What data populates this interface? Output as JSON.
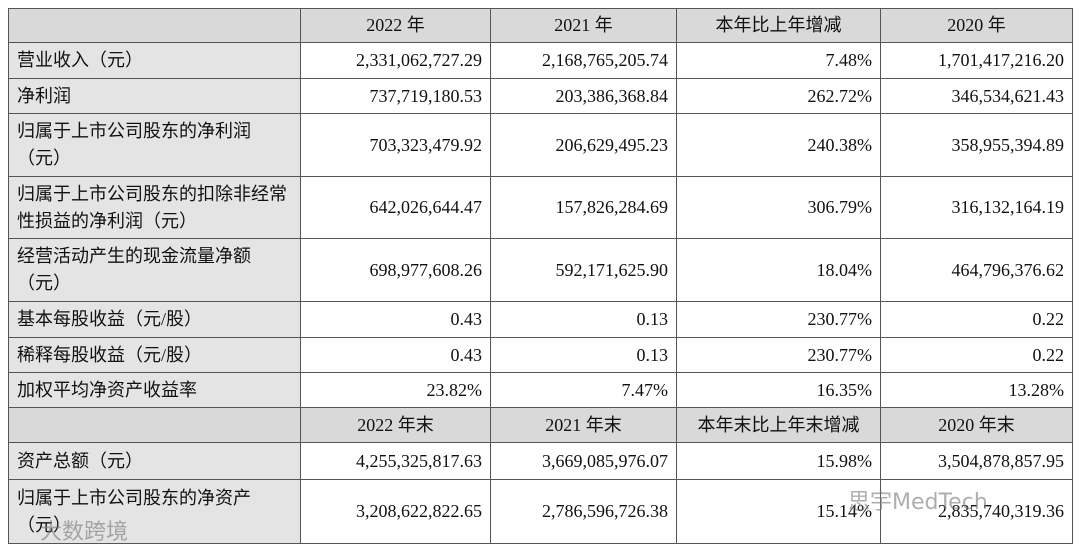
{
  "table": {
    "sections": [
      {
        "columns": [
          "2022 年",
          "2021 年",
          "本年比上年增减",
          "2020 年"
        ],
        "rows": [
          [
            "营业收入（元）",
            "2,331,062,727.29",
            "2,168,765,205.74",
            "7.48%",
            "1,701,417,216.20"
          ],
          [
            "净利润",
            "737,719,180.53",
            "203,386,368.84",
            "262.72%",
            "346,534,621.43"
          ],
          [
            "归属于上市公司股东的净利润（元）",
            "703,323,479.92",
            "206,629,495.23",
            "240.38%",
            "358,955,394.89"
          ],
          [
            "归属于上市公司股东的扣除非经常性损益的净利润（元）",
            "642,026,644.47",
            "157,826,284.69",
            "306.79%",
            "316,132,164.19"
          ],
          [
            "经营活动产生的现金流量净额（元）",
            "698,977,608.26",
            "592,171,625.90",
            "18.04%",
            "464,796,376.62"
          ],
          [
            "基本每股收益（元/股）",
            "0.43",
            "0.13",
            "230.77%",
            "0.22"
          ],
          [
            "稀释每股收益（元/股）",
            "0.43",
            "0.13",
            "230.77%",
            "0.22"
          ],
          [
            "加权平均净资产收益率",
            "23.82%",
            "7.47%",
            "16.35%",
            "13.28%"
          ]
        ]
      },
      {
        "columns": [
          "2022 年末",
          "2021 年末",
          "本年末比上年末增减",
          "2020 年末"
        ],
        "rows": [
          [
            "资产总额（元）",
            "4,255,325,817.63",
            "3,669,085,976.07",
            "15.98%",
            "3,504,878,857.95"
          ],
          [
            "归属于上市公司股东的净资产（元）",
            "3,208,622,822.65",
            "2,786,596,726.38",
            "15.14%",
            "2,835,740,319.36"
          ]
        ]
      }
    ]
  },
  "watermarks": [
    "思宇MedTech",
    "大数跨境"
  ]
}
